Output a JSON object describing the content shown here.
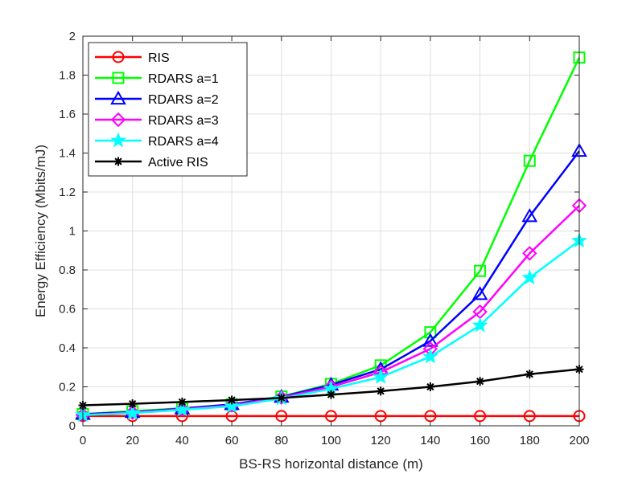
{
  "chart_data": {
    "type": "line",
    "title": "",
    "xlabel": "BS-RS horizontal distance (m)",
    "ylabel": "Energy Efficiency (Mbits/mJ)",
    "xlim": [
      0,
      200
    ],
    "ylim": [
      0,
      2
    ],
    "grid": true,
    "legend_position": "top-left",
    "x": [
      0,
      20,
      40,
      60,
      80,
      100,
      120,
      140,
      160,
      180,
      200
    ],
    "x_ticks": [
      "0",
      "20",
      "40",
      "60",
      "80",
      "100",
      "120",
      "140",
      "160",
      "180",
      "200"
    ],
    "y_ticks": [
      "0",
      "0.2",
      "0.4",
      "0.6",
      "0.8",
      "1",
      "1.2",
      "1.4",
      "1.6",
      "1.8",
      "2"
    ],
    "y_tick_values": [
      0,
      0.2,
      0.4,
      0.6,
      0.8,
      1.0,
      1.2,
      1.4,
      1.6,
      1.8,
      2.0
    ],
    "series": [
      {
        "name": "RIS",
        "color": "#ff0000",
        "marker": "circle",
        "values": [
          0.05,
          0.05,
          0.05,
          0.05,
          0.05,
          0.05,
          0.05,
          0.05,
          0.05,
          0.05,
          0.05
        ]
      },
      {
        "name": "RDARS a=1",
        "color": "#00ff00",
        "marker": "square",
        "values": [
          0.06,
          0.075,
          0.09,
          0.11,
          0.15,
          0.215,
          0.31,
          0.48,
          0.795,
          1.36,
          1.89
        ]
      },
      {
        "name": "RDARS a=2",
        "color": "#0000ff",
        "marker": "triangle",
        "values": [
          0.06,
          0.07,
          0.088,
          0.11,
          0.148,
          0.21,
          0.29,
          0.435,
          0.675,
          1.075,
          1.41
        ]
      },
      {
        "name": "RDARS a=3",
        "color": "#ff00ff",
        "marker": "diamond",
        "values": [
          0.055,
          0.068,
          0.085,
          0.105,
          0.145,
          0.2,
          0.275,
          0.395,
          0.585,
          0.885,
          1.13
        ]
      },
      {
        "name": "RDARS a=4",
        "color": "#00ffff",
        "marker": "star",
        "values": [
          0.055,
          0.065,
          0.082,
          0.1,
          0.14,
          0.19,
          0.25,
          0.355,
          0.515,
          0.76,
          0.95
        ]
      },
      {
        "name": "Active RIS",
        "color": "#000000",
        "marker": "asterisk",
        "values": [
          0.105,
          0.113,
          0.122,
          0.132,
          0.143,
          0.16,
          0.178,
          0.2,
          0.228,
          0.265,
          0.29
        ]
      }
    ]
  }
}
